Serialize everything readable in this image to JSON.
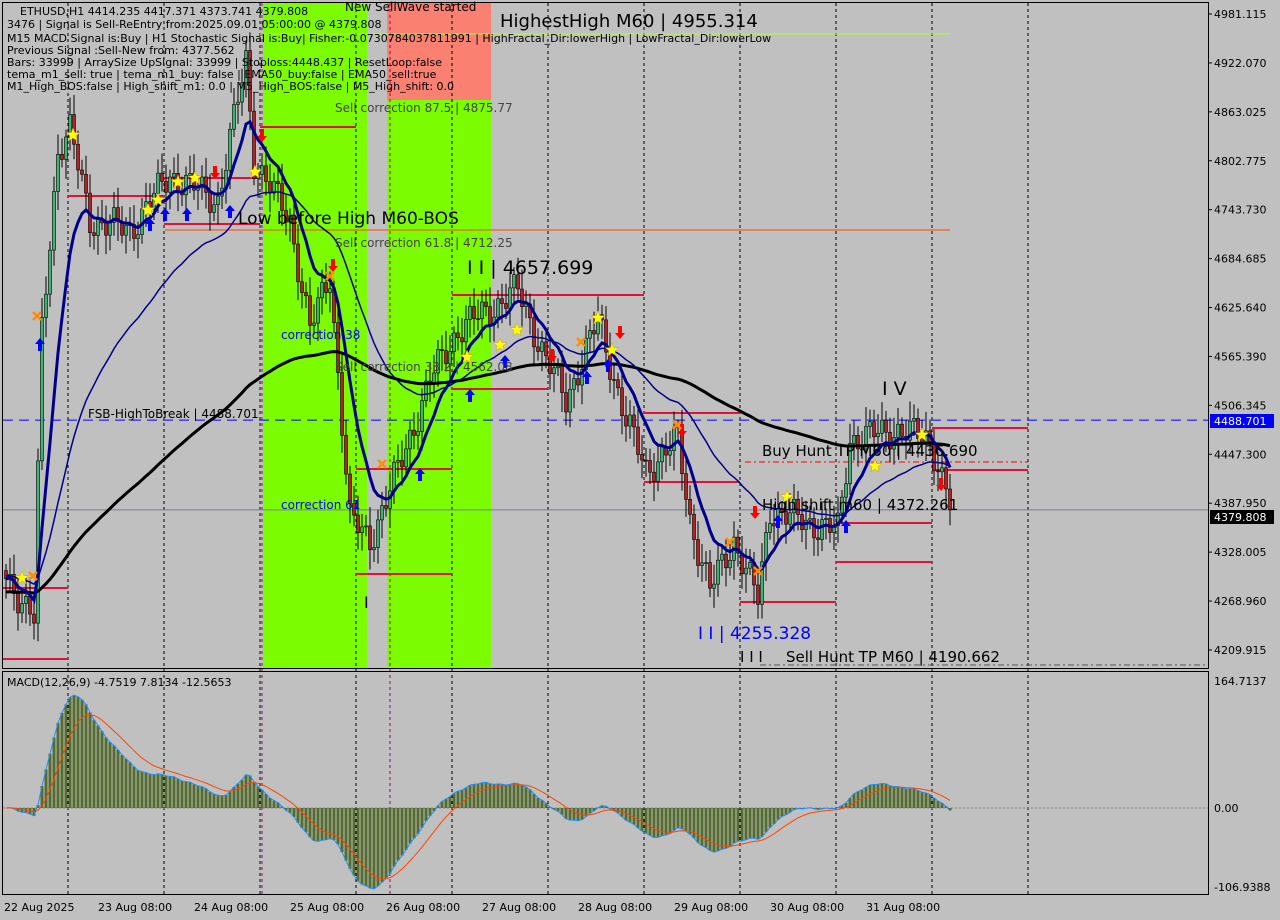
{
  "header": {
    "symbol_line": "ETHUSD,H1  4414.235 4417.371 4373.741 4379.808",
    "wave_note": "New SellWave started",
    "info_lines": [
      "3476 | Signal is Sell-ReEntry from:2025.09.01 05:00:00 @ 4379.808",
      "M15 MACD Signal is:Buy | H1 Stochastic Signal is:Buy| Fisher:-0.0730784037811991 | HighFractal_Dir:lowerHigh | LowFractal_Dir:lowerLow",
      "Previous Signal :Sell-New from: 4377.562",
      "Bars: 33999 | ArraySize UpSignal: 33999 | Stoploss:4448.437 | ResetLoop:false",
      "tema_m1_sell: true | tema_m1_buy: false | EMA50_buy:false | EMA50_sell:true",
      "M1_High_BOS:false | High_shift_m1: 0.0 | M5_High_BOS:false | M5_High_shift: 0.0"
    ]
  },
  "annotations": {
    "highest_high": "HighestHigh   M60 | 4955.314",
    "sell_corr_875": "Sell correction 87.5 | 4875.77",
    "low_before_high": "Low before High   M60-BOS",
    "sell_corr_618": "Sell correction 61.8 | 4712.25",
    "wave_ii": "I I | 4657.699",
    "corr_38": "correction 38",
    "sell_corr_382": "Sell correction 38.2 | 4562.08",
    "fsb": "FSB-HighToBreak | 4488.701",
    "corr_61": "correction 61",
    "wave_i": "I",
    "wave_iv": "I V",
    "buy_hunt": "Buy Hunt TP M60 | 4436.690",
    "high_shift": "High shift m60 | 4372.261",
    "wave_ii_low": "I I | 4255.328",
    "wave_iii_mark": "I I I",
    "sell_hunt": "Sell Hunt TP M60 | 4190.662"
  },
  "price_axis": {
    "ticks": [
      "4981.115",
      "4922.070",
      "4863.025",
      "4802.775",
      "4743.730",
      "4684.685",
      "4625.640",
      "4565.390",
      "4506.345",
      "4447.300",
      "4387.950",
      "4328.005",
      "4268.960",
      "4209.915"
    ],
    "fsb_label": "4488.701",
    "current_label": "4379.808"
  },
  "macd": {
    "label": "MACD(12,26,9) -4.7519 7.8134 -12.5653",
    "ticks": [
      "164.7137",
      "0.00",
      "-106.9388"
    ]
  },
  "time_axis": [
    "22 Aug 2025",
    "23 Aug 08:00",
    "24 Aug 08:00",
    "25 Aug 08:00",
    "26 Aug 08:00",
    "27 Aug 08:00",
    "28 Aug 08:00",
    "29 Aug 08:00",
    "30 Aug 08:00",
    "31 Aug 08:00"
  ],
  "colors": {
    "background": "#c0c0c0",
    "bull": "#3cb371",
    "bear": "#b22222",
    "zone_green": "#7cfc00",
    "zone_red": "#fa8072",
    "ema_fast": "#00008b",
    "ema_slow": "#000000",
    "fsb": "#0000ff",
    "level": "#dc143c",
    "macd_hist": "#556b2f",
    "macd_main": "#1e90ff",
    "macd_signal": "#ff4500"
  },
  "chart_data": {
    "type": "candlestick",
    "symbol": "ETHUSD",
    "timeframe": "H1",
    "ylim": [
      4190,
      4990
    ],
    "close_path": [
      [
        "2025-08-22T09:00",
        4301
      ],
      [
        "2025-08-22T16:00",
        4246
      ],
      [
        "2025-08-22T18:00",
        4598
      ],
      [
        "2025-08-22T22:00",
        4816
      ],
      [
        "2025-08-23T01:00",
        4840
      ],
      [
        "2025-08-23T06:00",
        4731
      ],
      [
        "2025-08-23T16:00",
        4719
      ],
      [
        "2025-08-24T02:00",
        4786
      ],
      [
        "2025-08-24T14:00",
        4755
      ],
      [
        "2025-08-24T21:00",
        4925
      ],
      [
        "2025-08-24T23:00",
        4804
      ],
      [
        "2025-08-25T08:00",
        4731
      ],
      [
        "2025-08-25T13:00",
        4598
      ],
      [
        "2025-08-25T18:00",
        4665
      ],
      [
        "2025-08-25T23:00",
        4368
      ],
      [
        "2025-08-26T04:00",
        4343
      ],
      [
        "2025-08-26T11:00",
        4428
      ],
      [
        "2025-08-26T19:00",
        4537
      ],
      [
        "2025-08-27T02:00",
        4598
      ],
      [
        "2025-08-27T17:00",
        4646
      ],
      [
        "2025-08-28T00:00",
        4562
      ],
      [
        "2025-08-28T05:00",
        4513
      ],
      [
        "2025-08-28T13:00",
        4610
      ],
      [
        "2025-08-28T20:00",
        4489
      ],
      [
        "2025-08-29T01:00",
        4428
      ],
      [
        "2025-08-29T09:00",
        4465
      ],
      [
        "2025-08-29T12:00",
        4368
      ],
      [
        "2025-08-29T17:00",
        4283
      ],
      [
        "2025-08-29T23:00",
        4343
      ],
      [
        "2025-08-30T05:00",
        4271
      ],
      [
        "2025-08-30T08:00",
        4380
      ],
      [
        "2025-08-30T15:00",
        4368
      ],
      [
        "2025-08-31T01:00",
        4355
      ],
      [
        "2025-08-31T04:00",
        4465
      ],
      [
        "2025-08-31T16:00",
        4477
      ],
      [
        "2025-09-01T00:00",
        4465
      ],
      [
        "2025-09-01T04:00",
        4404
      ],
      [
        "2025-09-01T05:00",
        4379.808
      ]
    ],
    "last_bar": {
      "open": 4414.235,
      "high": 4417.371,
      "low": 4373.741,
      "close": 4379.808
    },
    "levels": {
      "fsb_high_to_break": 4488.701,
      "highest_high": 4955.314,
      "buy_hunt_tp": 4436.69,
      "high_shift": 4372.261,
      "sell_hunt_tp": 4190.662
    },
    "macd": {
      "main": -4.7519,
      "signal": 7.8134,
      "hist": -12.5653,
      "ylim": [
        -106.9388,
        164.7137
      ]
    }
  }
}
